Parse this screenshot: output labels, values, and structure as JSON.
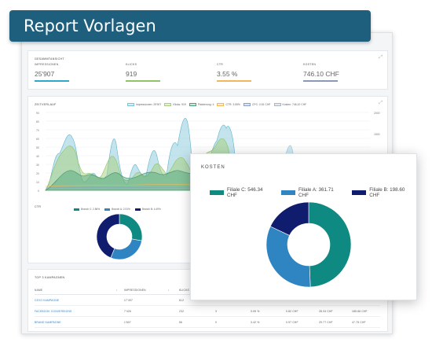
{
  "banner": {
    "title": "Report Vorlagen"
  },
  "summary": {
    "title": "GESAMMTANSICHT",
    "tool": "⤢",
    "metrics": [
      {
        "label": "IMPRESSIONEN",
        "value": "25'907",
        "color": "#2fa9c8"
      },
      {
        "label": "KLICKS",
        "value": "919",
        "color": "#8fc46a"
      },
      {
        "label": "CTR",
        "value": "3.55 %",
        "color": "#f0b85c"
      },
      {
        "label": "KOSTEN",
        "value": "746.10 CHF",
        "color": "#8a9ab5"
      }
    ]
  },
  "timeline": {
    "title": "ZEITVERLAUF",
    "tool": "⤢",
    "legend": [
      {
        "label": "Impressionen: 25'907",
        "color": "#7cc3d8"
      },
      {
        "label": "Klicks: 919",
        "color": "#a5cf7a"
      },
      {
        "label": "Platzierung: 4",
        "color": "#4aa17a"
      },
      {
        "label": "CTR: 3.55%",
        "color": "#f0b85c"
      },
      {
        "label": "CPC: 0.81 CHF",
        "color": "#8aa0c8"
      },
      {
        "label": "Kosten: 746.10 CHF",
        "color": "#a9b7c6"
      }
    ],
    "y_left": [
      "90",
      "80",
      "70",
      "60",
      "50",
      "40",
      "30",
      "20",
      "10",
      "0"
    ],
    "y_right": [
      "2000",
      "1500",
      "1000",
      "500"
    ]
  },
  "ctr": {
    "title": "CTR",
    "legend": [
      {
        "label": "Branch C: 2.86%",
        "color": "#0f8a82"
      },
      {
        "label": "Branch A: 2.91%",
        "color": "#2f84c2"
      },
      {
        "label": "Branch B: 4.49%",
        "color": "#101d6e"
      }
    ]
  },
  "campaigns": {
    "title": "TOP 3 KAMPAGNEN",
    "headers": [
      "NAME",
      "↕",
      "IMPRESSIONEN",
      "↕",
      "KLICKS",
      "",
      "",
      "",
      "",
      ""
    ],
    "rows": [
      {
        "name": "CEVO KAMPAGNE",
        "cols": [
          "",
          "17'497",
          "",
          "612",
          "",
          "",
          "",
          "",
          ""
        ]
      },
      {
        "name": "FACEBOOK CONVERSIONS",
        "cols": [
          "",
          "7'426",
          "",
          "232",
          "",
          "3",
          "3.05 %",
          "0.82 CHF",
          "28.34 CHF",
          "185.66 CHF"
        ]
      },
      {
        "name": "BRAND KAMPAGNE",
        "cols": [
          "",
          "1'607",
          "",
          "56",
          "",
          "0",
          "3.42 %",
          "0.97 CHF",
          "29.77 CHF",
          "47.75 CHF"
        ]
      }
    ]
  },
  "kosten": {
    "title": "KOSTEN",
    "colors": {
      "c": "#0f8a82",
      "a": "#2f84c2",
      "b": "#101d6e"
    },
    "legend": [
      {
        "label": "Filiale C: 546.34 CHF",
        "color": "#0f8a82"
      },
      {
        "label": "Filiale A: 361.71 CHF",
        "color": "#2f84c2"
      },
      {
        "label": "Filiale B: 198.60 CHF",
        "color": "#101d6e"
      }
    ]
  },
  "chart_data": [
    {
      "type": "pie",
      "title": "KOSTEN",
      "categories": [
        "Filiale C",
        "Filiale A",
        "Filiale B"
      ],
      "values": [
        546.34,
        361.71,
        198.6
      ],
      "unit": "CHF"
    },
    {
      "type": "pie",
      "title": "CTR",
      "categories": [
        "Branch C",
        "Branch A",
        "Branch B"
      ],
      "values": [
        2.86,
        2.91,
        4.49
      ],
      "unit": "%"
    }
  ]
}
